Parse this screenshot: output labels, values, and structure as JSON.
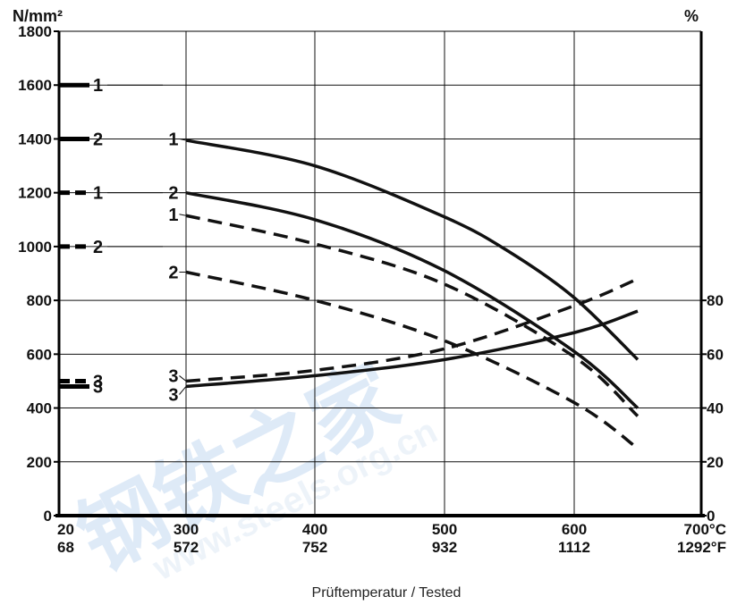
{
  "chart_data": {
    "type": "line",
    "xlabel": "Prüftemperatur / Tested",
    "y_left_unit": "N/mm²",
    "y_right_unit": "%",
    "x_ticks": [
      {
        "c": 20,
        "top": "20",
        "bottom": "68"
      },
      {
        "c": 300,
        "top": "300",
        "bottom": "572"
      },
      {
        "c": 400,
        "top": "400",
        "bottom": "752"
      },
      {
        "c": 500,
        "top": "500",
        "bottom": "932"
      },
      {
        "c": 600,
        "top": "600",
        "bottom": "1112"
      },
      {
        "c": 700,
        "top": "700°C",
        "bottom": "1292°F"
      }
    ],
    "y_left_ticks": [
      0,
      200,
      400,
      600,
      800,
      1000,
      1200,
      1400,
      1600,
      1800
    ],
    "y_right_ticks": [
      0,
      20,
      40,
      60,
      80
    ],
    "ylim_left": [
      0,
      1800
    ],
    "ylim_right": [
      0,
      180
    ],
    "grid": true,
    "legend": [
      {
        "y": 1600,
        "style": "solid",
        "label": "1"
      },
      {
        "y": 1400,
        "style": "solid",
        "label": "2"
      },
      {
        "y": 1200,
        "style": "dashed",
        "label": "1"
      },
      {
        "y": 1000,
        "style": "dashed",
        "label": "2"
      },
      {
        "y": 500,
        "style": "dashed",
        "label": "3"
      },
      {
        "y": 480,
        "style": "solid",
        "label": "3"
      }
    ],
    "series": [
      {
        "label": "1",
        "style": "solid",
        "axis": "left",
        "x": [
          300,
          400,
          500,
          550,
          600,
          650
        ],
        "y": [
          1395,
          1300,
          1110,
          980,
          810,
          580
        ],
        "label_x": 295,
        "label_y": 1400
      },
      {
        "label": "2",
        "style": "solid",
        "axis": "left",
        "x": [
          300,
          400,
          500,
          600,
          650
        ],
        "y": [
          1200,
          1100,
          910,
          610,
          400
        ],
        "label_x": 295,
        "label_y": 1200
      },
      {
        "label": "1",
        "style": "dashed",
        "axis": "left",
        "x": [
          300,
          400,
          500,
          600,
          650
        ],
        "y": [
          1115,
          1010,
          860,
          590,
          370
        ],
        "label_x": 295,
        "label_y": 1120
      },
      {
        "label": "2",
        "style": "dashed",
        "axis": "left",
        "x": [
          300,
          400,
          500,
          600,
          650
        ],
        "y": [
          905,
          800,
          650,
          420,
          250
        ],
        "label_x": 295,
        "label_y": 905
      },
      {
        "label": "3",
        "style": "dashed",
        "axis": "right",
        "x": [
          300,
          400,
          500,
          600,
          650
        ],
        "y": [
          50,
          54,
          62,
          78,
          88
        ],
        "label_x": 295,
        "label_y": 52
      },
      {
        "label": "3",
        "style": "solid",
        "axis": "right",
        "x": [
          300,
          400,
          500,
          600,
          650
        ],
        "y": [
          48,
          52,
          58,
          68,
          76
        ],
        "label_x": 295,
        "label_y": 45
      }
    ]
  },
  "watermark": {
    "cn": "钢铁之家",
    "url": "www.steels.org.cn"
  }
}
